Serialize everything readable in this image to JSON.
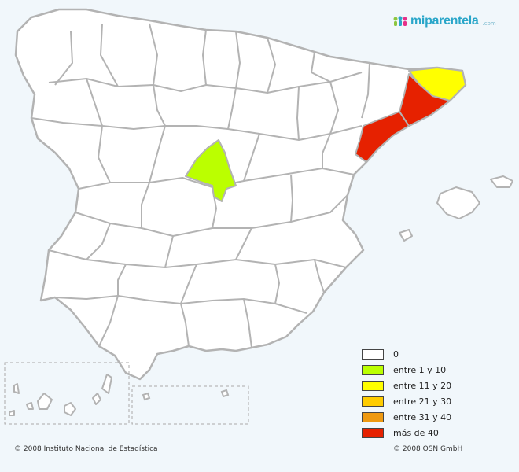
{
  "brand": {
    "name": "miparentela",
    "tld": ".com"
  },
  "legend": [
    {
      "label": "0",
      "color": "#ffffff"
    },
    {
      "label": "entre 1 y 10",
      "color": "#bbff00"
    },
    {
      "label": "entre 11 y 20",
      "color": "#ffff00"
    },
    {
      "label": "entre 21 y 30",
      "color": "#ffcc00"
    },
    {
      "label": "entre 31 y 40",
      "color": "#ee9911"
    },
    {
      "label": "más de 40",
      "color": "#e62100"
    }
  ],
  "regions": [
    {
      "name": "Madrid",
      "category": "entre 1 y 10",
      "color": "#bbff00"
    },
    {
      "name": "Girona",
      "category": "entre 11 y 20",
      "color": "#ffff00"
    },
    {
      "name": "Barcelona",
      "category": "más de 40",
      "color": "#e62100"
    },
    {
      "name": "Tarragona",
      "category": "más de 40",
      "color": "#e62100"
    }
  ],
  "colors": {
    "province_fill": "#ffffff",
    "border": "#b3b3b3",
    "background": "#f1f7fb"
  },
  "footer": {
    "left": "© 2008 Instituto Nacional de Estadística",
    "right": "© 2008 OSN GmbH"
  }
}
